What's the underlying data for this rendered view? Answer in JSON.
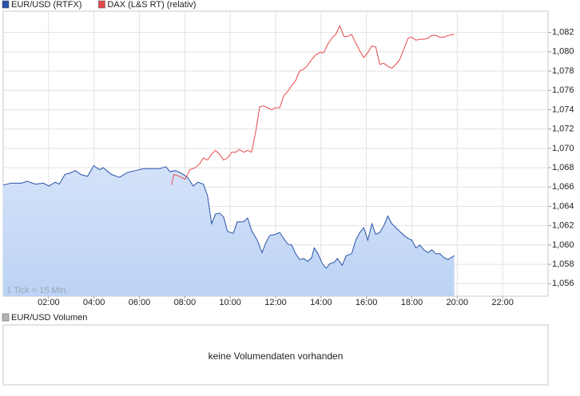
{
  "chart_data": {
    "type": "line",
    "xlim": [
      0,
      24
    ],
    "ylim": [
      1.0547,
      1.0842
    ],
    "grid": true,
    "annotation": "1 Tick = 15 Min.",
    "xticks": [
      {
        "value": 2,
        "label": "02:00"
      },
      {
        "value": 4,
        "label": "04:00"
      },
      {
        "value": 6,
        "label": "06:00"
      },
      {
        "value": 8,
        "label": "08:00"
      },
      {
        "value": 10,
        "label": "10:00"
      },
      {
        "value": 12,
        "label": "12:00"
      },
      {
        "value": 14,
        "label": "14:00"
      },
      {
        "value": 16,
        "label": "16:00"
      },
      {
        "value": 18,
        "label": "18:00"
      },
      {
        "value": 20,
        "label": "20:00"
      },
      {
        "value": 22,
        "label": "22:00"
      }
    ],
    "yticks": [
      {
        "value": 1.056,
        "label": "1,056"
      },
      {
        "value": 1.058,
        "label": "1,058"
      },
      {
        "value": 1.06,
        "label": "1,060"
      },
      {
        "value": 1.062,
        "label": "1,062"
      },
      {
        "value": 1.064,
        "label": "1,064"
      },
      {
        "value": 1.066,
        "label": "1,066"
      },
      {
        "value": 1.068,
        "label": "1,068"
      },
      {
        "value": 1.07,
        "label": "1,070"
      },
      {
        "value": 1.072,
        "label": "1,072"
      },
      {
        "value": 1.074,
        "label": "1,074"
      },
      {
        "value": 1.076,
        "label": "1,076"
      },
      {
        "value": 1.078,
        "label": "1,078"
      },
      {
        "value": 1.08,
        "label": "1,080"
      },
      {
        "value": 1.082,
        "label": "1,082"
      }
    ],
    "series": [
      {
        "name": "EUR/USD (RTFX)",
        "color": "#2852a8",
        "area": true,
        "fill": "#bcd3f5",
        "x": [
          0,
          0.35,
          0.81,
          1.06,
          1.41,
          1.77,
          2.01,
          2.29,
          2.47,
          2.72,
          3.0,
          3.18,
          3.42,
          3.71,
          3.99,
          4.24,
          4.41,
          4.77,
          5.12,
          5.47,
          5.82,
          6.18,
          6.53,
          6.88,
          7.17,
          7.34,
          7.59,
          7.87,
          8.12,
          8.37,
          8.58,
          8.82,
          9.0,
          9.18,
          9.35,
          9.53,
          9.71,
          9.88,
          10.13,
          10.31,
          10.59,
          10.77,
          10.94,
          11.19,
          11.4,
          11.58,
          11.75,
          12.0,
          12.18,
          12.35,
          12.53,
          12.71,
          12.88,
          13.06,
          13.24,
          13.41,
          13.59,
          13.7,
          13.87,
          14.05,
          14.22,
          14.4,
          14.58,
          14.72,
          14.93,
          15.11,
          15.35,
          15.53,
          15.71,
          15.88,
          16.06,
          16.24,
          16.41,
          16.59,
          16.77,
          16.94,
          17.12,
          17.3,
          17.47,
          17.65,
          17.83,
          18.0,
          18.18,
          18.36,
          18.53,
          18.71,
          18.88,
          19.06,
          19.24,
          19.41,
          19.59,
          19.87
        ],
        "values": [
          1.0662,
          1.0664,
          1.0664,
          1.0666,
          1.0663,
          1.0664,
          1.0661,
          1.0665,
          1.0663,
          1.0673,
          1.0675,
          1.0677,
          1.0673,
          1.0671,
          1.0682,
          1.0678,
          1.068,
          1.0673,
          1.067,
          1.0675,
          1.0677,
          1.0679,
          1.0679,
          1.0679,
          1.0681,
          1.0676,
          1.0677,
          1.0674,
          1.067,
          1.0661,
          1.0665,
          1.0663,
          1.0651,
          1.0622,
          1.0632,
          1.0633,
          1.0629,
          1.0614,
          1.0612,
          1.0624,
          1.0624,
          1.0628,
          1.0615,
          1.0605,
          1.0592,
          1.0603,
          1.061,
          1.0611,
          1.0613,
          1.0607,
          1.0601,
          1.06,
          1.0591,
          1.0585,
          1.0586,
          1.0583,
          1.0587,
          1.0597,
          1.0591,
          1.0581,
          1.0576,
          1.0581,
          1.0582,
          1.0586,
          1.0579,
          1.0589,
          1.0591,
          1.0605,
          1.0613,
          1.0618,
          1.0605,
          1.0622,
          1.0611,
          1.0613,
          1.062,
          1.063,
          1.0622,
          1.0618,
          1.0614,
          1.061,
          1.0607,
          1.0605,
          1.0597,
          1.06,
          1.0595,
          1.0592,
          1.0595,
          1.0591,
          1.0591,
          1.0587,
          1.0585,
          1.0589
        ]
      },
      {
        "name": "DAX (L&S RT) (relativ)",
        "color": "#e8494b",
        "area": false,
        "x": [
          7.41,
          7.52,
          7.77,
          8.01,
          8.22,
          8.47,
          8.65,
          8.82,
          9.0,
          9.18,
          9.35,
          9.53,
          9.71,
          9.88,
          10.06,
          10.24,
          10.41,
          10.59,
          10.77,
          10.94,
          11.12,
          11.3,
          11.47,
          11.65,
          11.83,
          12.0,
          12.18,
          12.35,
          12.53,
          12.71,
          12.88,
          13.06,
          13.24,
          13.41,
          13.59,
          13.77,
          13.94,
          14.12,
          14.3,
          14.47,
          14.65,
          14.83,
          15.0,
          15.18,
          15.35,
          15.53,
          15.71,
          15.88,
          16.06,
          16.24,
          16.41,
          16.59,
          16.77,
          16.94,
          17.12,
          17.3,
          17.47,
          17.65,
          17.83,
          18.0,
          18.18,
          18.36,
          18.53,
          18.71,
          18.88,
          19.06,
          19.24,
          19.41,
          19.59,
          19.87
        ],
        "values": [
          1.0662,
          1.0673,
          1.0671,
          1.0668,
          1.0678,
          1.068,
          1.0684,
          1.069,
          1.0688,
          1.0694,
          1.0698,
          1.0694,
          1.0688,
          1.069,
          1.0696,
          1.0696,
          1.0699,
          1.0696,
          1.0698,
          1.0696,
          1.0717,
          1.0743,
          1.0744,
          1.0742,
          1.074,
          1.0742,
          1.0742,
          1.0754,
          1.0759,
          1.0765,
          1.077,
          1.078,
          1.0782,
          1.0786,
          1.0792,
          1.0797,
          1.0799,
          1.0799,
          1.0808,
          1.0814,
          1.0818,
          1.0827,
          1.0816,
          1.0816,
          1.0818,
          1.0809,
          1.0801,
          1.0794,
          1.0799,
          1.0806,
          1.0805,
          1.0787,
          1.0788,
          1.0785,
          1.0783,
          1.0787,
          1.0792,
          1.0803,
          1.0814,
          1.0815,
          1.0812,
          1.0813,
          1.0813,
          1.0814,
          1.0817,
          1.0817,
          1.0815,
          1.0815,
          1.0817,
          1.0818
        ]
      }
    ]
  },
  "volume_panel": {
    "legend": "EUR/USD Volumen",
    "color": "#b4b4b4",
    "message": "keine Volumendaten vorhanden"
  }
}
